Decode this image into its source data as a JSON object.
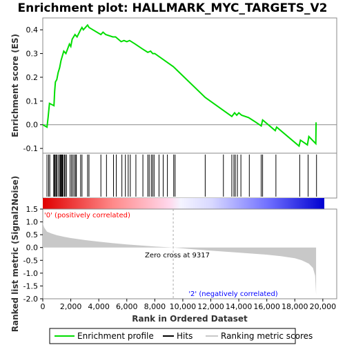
{
  "title": "Enrichment plot: HALLMARK_MYC_TARGETS_V2",
  "colors": {
    "profile": "#00dd00",
    "hits": "#000000",
    "metric_fill": "#c8c8c8",
    "positive": "#ff0000",
    "negative": "#0000ff",
    "zero_line": "#aaaaaa"
  },
  "chart_data": [
    {
      "type": "line",
      "name": "enrichment-profile",
      "ylabel": "Enrichment score (ES)",
      "xlim": [
        0,
        20500
      ],
      "ylim": [
        -0.12,
        0.45
      ],
      "yticks": [
        -0.1,
        0.0,
        0.1,
        0.2,
        0.3,
        0.4
      ],
      "ytick_labels": [
        "-0.1",
        "0.0",
        "0.1",
        "0.2",
        "0.3",
        "0.4"
      ],
      "series": [
        {
          "name": "Enrichment profile",
          "x": [
            0,
            300,
            380,
            480,
            800,
            850,
            900,
            1000,
            1100,
            1200,
            1300,
            1400,
            1500,
            1650,
            1900,
            2000,
            2100,
            2300,
            2450,
            2700,
            2800,
            2900,
            3200,
            3300,
            4150,
            4300,
            4500,
            5000,
            5200,
            5600,
            5800,
            6000,
            6200,
            6600,
            7100,
            7500,
            7700,
            7850,
            8000,
            9317,
            11600,
            12900,
            13500,
            13700,
            13850,
            14000,
            14200,
            14700,
            15100,
            15600,
            15700,
            16600,
            16700,
            18300,
            18400,
            18900,
            19000,
            19500,
            19520
          ],
          "y": [
            0.0,
            -0.01,
            0.03,
            0.09,
            0.08,
            0.14,
            0.18,
            0.19,
            0.22,
            0.24,
            0.27,
            0.29,
            0.31,
            0.3,
            0.34,
            0.33,
            0.36,
            0.38,
            0.37,
            0.4,
            0.41,
            0.4,
            0.42,
            0.41,
            0.38,
            0.39,
            0.38,
            0.37,
            0.37,
            0.35,
            0.355,
            0.35,
            0.355,
            0.34,
            0.32,
            0.305,
            0.31,
            0.3,
            0.3,
            0.245,
            0.115,
            0.06,
            0.035,
            0.05,
            0.04,
            0.05,
            0.04,
            0.03,
            0.015,
            -0.005,
            0.02,
            -0.025,
            -0.01,
            -0.09,
            -0.065,
            -0.085,
            -0.05,
            -0.08,
            0.01
          ]
        }
      ]
    },
    {
      "type": "scatter",
      "name": "hits",
      "hits": [
        300,
        420,
        500,
        780,
        830,
        880,
        950,
        1000,
        1100,
        1200,
        1250,
        1300,
        1350,
        1400,
        1450,
        1550,
        1600,
        1700,
        1950,
        2050,
        2150,
        2250,
        2350,
        2400,
        2700,
        2800,
        3200,
        3300,
        4150,
        4550,
        5050,
        5250,
        5650,
        5900,
        6100,
        6250,
        6650,
        7150,
        7500,
        7600,
        7750,
        7850,
        7950,
        8300,
        8600,
        8900,
        9350,
        9450,
        11600,
        12900,
        13500,
        13650,
        13750,
        13900,
        14150,
        14750,
        15600,
        15700,
        16650,
        18350,
        18950,
        19550
      ]
    },
    {
      "type": "area",
      "name": "ranked-list-metric",
      "xlabel": "Rank in Ordered Dataset",
      "ylabel": "Ranked list metric (Signal2Noise)",
      "xlim": [
        0,
        20500
      ],
      "ylim": [
        -2.0,
        1.5
      ],
      "xticks": [
        0,
        2000,
        4000,
        6000,
        8000,
        10000,
        12000,
        14000,
        16000,
        18000,
        20000
      ],
      "xtick_labels": [
        "0",
        "2,000",
        "4,000",
        "6,000",
        "8,000",
        "10,000",
        "12,000",
        "14,000",
        "16,000",
        "18,000",
        "20,000"
      ],
      "yticks": [
        -2.0,
        -1.5,
        -1.0,
        -0.5,
        0.0,
        0.5,
        1.0,
        1.5
      ],
      "ytick_labels": [
        "-2.0",
        "-1.5",
        "-1.0",
        "-0.5",
        "0.0",
        "0.5",
        "1.0",
        "1.5"
      ],
      "x": [
        0,
        100,
        300,
        600,
        1000,
        1500,
        2000,
        3000,
        4000,
        5000,
        6000,
        7000,
        8000,
        9317,
        10500,
        12000,
        14000,
        16000,
        17000,
        18000,
        18500,
        19000,
        19300,
        19450,
        19520
      ],
      "y": [
        0.95,
        0.78,
        0.62,
        0.55,
        0.48,
        0.42,
        0.37,
        0.29,
        0.23,
        0.17,
        0.12,
        0.08,
        0.04,
        0.0,
        -0.06,
        -0.12,
        -0.2,
        -0.28,
        -0.34,
        -0.42,
        -0.5,
        -0.63,
        -0.8,
        -1.1,
        -1.85
      ],
      "zero_cross": 9317,
      "annotations": {
        "positive": "'0' (positively correlated)",
        "negative": "'2' (negatively correlated)",
        "zero_cross": "Zero cross at 9317"
      }
    }
  ],
  "legend": {
    "items": [
      {
        "label": "Enrichment profile",
        "kind": "line",
        "color": "#00dd00"
      },
      {
        "label": "Hits",
        "kind": "line",
        "color": "#000000"
      },
      {
        "label": "Ranking metric scores",
        "kind": "line",
        "color": "#c8c8c8"
      }
    ]
  }
}
